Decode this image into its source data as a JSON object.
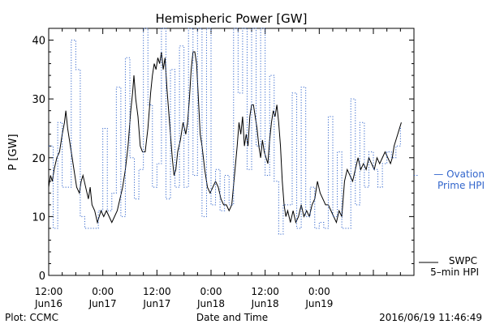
{
  "chart_data": {
    "type": "line",
    "title": "Hemispheric Power [GW]",
    "xlabel": "Date and Time",
    "ylabel": "P [GW]",
    "ylim": [
      0,
      42
    ],
    "yticks": [
      0,
      10,
      20,
      30,
      40
    ],
    "xlim": [
      0,
      81
    ],
    "x_unit": "hours from 2016-06-16 12:00",
    "xticks": [
      {
        "x": 0,
        "line1": "12:00",
        "line2": "Jun16"
      },
      {
        "x": 12,
        "line1": "0:00",
        "line2": "Jun17"
      },
      {
        "x": 24,
        "line1": "12:00",
        "line2": "Jun17"
      },
      {
        "x": 36,
        "line1": "0:00",
        "line2": "Jun18"
      },
      {
        "x": 48,
        "line1": "12:00",
        "line2": "Jun18"
      },
      {
        "x": 60,
        "line1": "0:00",
        "line2": "Jun19"
      }
    ],
    "footer_left": "Plot: CCMC",
    "footer_right": "2016/06/19 11:46:49",
    "series": [
      {
        "name": "SWPC 5-min HPI",
        "legend_line1": "SWPC",
        "legend_line2": "5–min HPI",
        "style": "solid",
        "color": "#000000",
        "points": [
          [
            0,
            15
          ],
          [
            0.4,
            17
          ],
          [
            0.8,
            16
          ],
          [
            1.2,
            18
          ],
          [
            1.8,
            20
          ],
          [
            2.4,
            21
          ],
          [
            3,
            24
          ],
          [
            3.5,
            26
          ],
          [
            3.8,
            28
          ],
          [
            4.2,
            25
          ],
          [
            4.6,
            23
          ],
          [
            5.2,
            20
          ],
          [
            5.8,
            17
          ],
          [
            6.2,
            15
          ],
          [
            6.8,
            14
          ],
          [
            7.2,
            16
          ],
          [
            7.6,
            17
          ],
          [
            8.2,
            15
          ],
          [
            8.8,
            13
          ],
          [
            9.2,
            15
          ],
          [
            9.6,
            12
          ],
          [
            10.2,
            11
          ],
          [
            10.8,
            9
          ],
          [
            11.2,
            10
          ],
          [
            11.6,
            11
          ],
          [
            12.2,
            10
          ],
          [
            12.8,
            11
          ],
          [
            13.4,
            10
          ],
          [
            14,
            9
          ],
          [
            14.6,
            10
          ],
          [
            15.2,
            11
          ],
          [
            15.8,
            13
          ],
          [
            16.4,
            15
          ],
          [
            17,
            18
          ],
          [
            17.6,
            22
          ],
          [
            18.2,
            28
          ],
          [
            18.6,
            31
          ],
          [
            18.9,
            34
          ],
          [
            19.3,
            30
          ],
          [
            19.8,
            27
          ],
          [
            20.3,
            22
          ],
          [
            20.8,
            21
          ],
          [
            21.4,
            21
          ],
          [
            22,
            25
          ],
          [
            22.6,
            31
          ],
          [
            23,
            34
          ],
          [
            23.4,
            36
          ],
          [
            23.8,
            35
          ],
          [
            24.2,
            37
          ],
          [
            24.6,
            36
          ],
          [
            25,
            38
          ],
          [
            25.4,
            35
          ],
          [
            25.8,
            37
          ],
          [
            26.2,
            32
          ],
          [
            26.6,
            28
          ],
          [
            27,
            24
          ],
          [
            27.4,
            20
          ],
          [
            27.8,
            17
          ],
          [
            28.2,
            18
          ],
          [
            28.6,
            21
          ],
          [
            29.2,
            23
          ],
          [
            29.8,
            26
          ],
          [
            30.4,
            24
          ],
          [
            30.8,
            26
          ],
          [
            31.2,
            30
          ],
          [
            31.6,
            35
          ],
          [
            32,
            38
          ],
          [
            32.4,
            38
          ],
          [
            32.8,
            36
          ],
          [
            33.2,
            30
          ],
          [
            33.6,
            24
          ],
          [
            34,
            22
          ],
          [
            34.6,
            18
          ],
          [
            35.2,
            15
          ],
          [
            35.8,
            14
          ],
          [
            36.4,
            15
          ],
          [
            37,
            16
          ],
          [
            37.6,
            15
          ],
          [
            38.2,
            13
          ],
          [
            38.8,
            12
          ],
          [
            39.4,
            12
          ],
          [
            40,
            11
          ],
          [
            40.6,
            12
          ],
          [
            41.2,
            17
          ],
          [
            41.8,
            22
          ],
          [
            42.2,
            26
          ],
          [
            42.6,
            24
          ],
          [
            43,
            27
          ],
          [
            43.4,
            22
          ],
          [
            43.8,
            24
          ],
          [
            44.2,
            22
          ],
          [
            44.6,
            27
          ],
          [
            45,
            29
          ],
          [
            45.4,
            29
          ],
          [
            45.8,
            27
          ],
          [
            46.2,
            25
          ],
          [
            46.6,
            22
          ],
          [
            47,
            20
          ],
          [
            47.4,
            23
          ],
          [
            47.8,
            21
          ],
          [
            48.2,
            20
          ],
          [
            48.6,
            19
          ],
          [
            49,
            23
          ],
          [
            49.4,
            26
          ],
          [
            49.8,
            28
          ],
          [
            50.2,
            27
          ],
          [
            50.6,
            29
          ],
          [
            51,
            26
          ],
          [
            51.4,
            22
          ],
          [
            51.8,
            16
          ],
          [
            52.2,
            12
          ],
          [
            52.6,
            10
          ],
          [
            53,
            11
          ],
          [
            53.6,
            9
          ],
          [
            54.2,
            11
          ],
          [
            54.8,
            9
          ],
          [
            55.4,
            10
          ],
          [
            56,
            12
          ],
          [
            56.6,
            10
          ],
          [
            57.2,
            11
          ],
          [
            57.8,
            10
          ],
          [
            58.4,
            12
          ],
          [
            59,
            13
          ],
          [
            59.6,
            16
          ],
          [
            60.2,
            14
          ],
          [
            60.8,
            13
          ],
          [
            61.4,
            12
          ],
          [
            62,
            12
          ],
          [
            62.6,
            11
          ],
          [
            63.2,
            10
          ],
          [
            63.8,
            9
          ],
          [
            64.4,
            11
          ],
          [
            65,
            10
          ],
          [
            65.6,
            16
          ],
          [
            66.2,
            18
          ],
          [
            66.8,
            17
          ],
          [
            67.4,
            16
          ],
          [
            68,
            18
          ],
          [
            68.6,
            20
          ],
          [
            69.2,
            18
          ],
          [
            69.8,
            19
          ],
          [
            70.4,
            18
          ],
          [
            71,
            20
          ],
          [
            71.6,
            19
          ],
          [
            72.2,
            18
          ],
          [
            72.8,
            20
          ],
          [
            73.4,
            19
          ],
          [
            74,
            20
          ],
          [
            74.6,
            21
          ],
          [
            75.2,
            20
          ],
          [
            75.8,
            19
          ],
          [
            76.2,
            20
          ],
          [
            76.6,
            22
          ],
          [
            77,
            23
          ],
          [
            77.4,
            24
          ],
          [
            77.8,
            25
          ],
          [
            78.2,
            26
          ]
        ]
      },
      {
        "name": "Ovation Prime HPI",
        "legend_line1": "— Ovation",
        "legend_line2": "Prime HPI",
        "style": "dotted-step",
        "color": "#3366cc",
        "points": [
          [
            0,
            22
          ],
          [
            1,
            8
          ],
          [
            2,
            26
          ],
          [
            3,
            15
          ],
          [
            4,
            15
          ],
          [
            5,
            40
          ],
          [
            6,
            35
          ],
          [
            7,
            10
          ],
          [
            8,
            8
          ],
          [
            10,
            8
          ],
          [
            11,
            11
          ],
          [
            12,
            25
          ],
          [
            13,
            11
          ],
          [
            14,
            14
          ],
          [
            15,
            32
          ],
          [
            16,
            10
          ],
          [
            17,
            37
          ],
          [
            18,
            20
          ],
          [
            19,
            13
          ],
          [
            20,
            18
          ],
          [
            21,
            42
          ],
          [
            22,
            29
          ],
          [
            23,
            15
          ],
          [
            24,
            19
          ],
          [
            25,
            42
          ],
          [
            26,
            13
          ],
          [
            27,
            35
          ],
          [
            28,
            15
          ],
          [
            29,
            39
          ],
          [
            30,
            15
          ],
          [
            31,
            42
          ],
          [
            32,
            17
          ],
          [
            33,
            42
          ],
          [
            34,
            10
          ],
          [
            35,
            42
          ],
          [
            36,
            12
          ],
          [
            37,
            18
          ],
          [
            38,
            11
          ],
          [
            39,
            17
          ],
          [
            40,
            12
          ],
          [
            41,
            42
          ],
          [
            42,
            31
          ],
          [
            43,
            42
          ],
          [
            44,
            18
          ],
          [
            45,
            42
          ],
          [
            46,
            22
          ],
          [
            47,
            42
          ],
          [
            48,
            17
          ],
          [
            49,
            34
          ],
          [
            50,
            16
          ],
          [
            51,
            7
          ],
          [
            52,
            12
          ],
          [
            53,
            12
          ],
          [
            54,
            31
          ],
          [
            55,
            8
          ],
          [
            56,
            32
          ],
          [
            57,
            10
          ],
          [
            58,
            15
          ],
          [
            59,
            8
          ],
          [
            60,
            9
          ],
          [
            61,
            8
          ],
          [
            62,
            27
          ],
          [
            63,
            10
          ],
          [
            64,
            21
          ],
          [
            65,
            8
          ],
          [
            66,
            8
          ],
          [
            67,
            30
          ],
          [
            68,
            12
          ],
          [
            69,
            26
          ],
          [
            70,
            15
          ],
          [
            71,
            21
          ],
          [
            72,
            18
          ],
          [
            73,
            15
          ],
          [
            74,
            19
          ],
          [
            75,
            21
          ],
          [
            76,
            20
          ],
          [
            77,
            22
          ],
          [
            78,
            25
          ],
          [
            78.2,
            25
          ]
        ]
      }
    ]
  }
}
